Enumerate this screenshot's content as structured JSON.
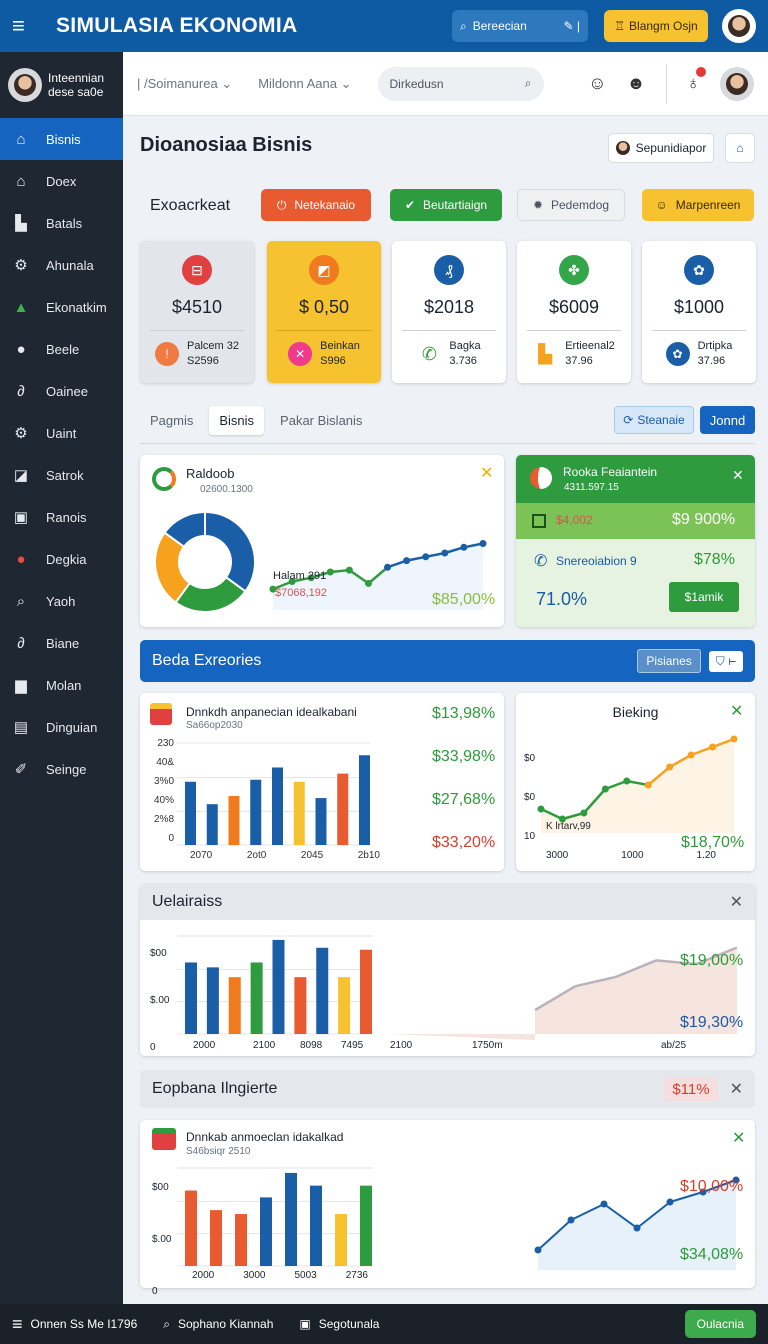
{
  "header": {
    "title": "SIMULASIA EKONOMIA",
    "search_label": "Bereecian",
    "button_label": "Blangm Osjn"
  },
  "sidebar": {
    "user": {
      "name": "Inteennian",
      "sub": "dese sa0e"
    },
    "items": [
      {
        "label": "Bisnis",
        "icon": "home-icon"
      },
      {
        "label": "Doex",
        "icon": "house-icon"
      },
      {
        "label": "Batals",
        "icon": "factory-icon"
      },
      {
        "label": "Ahunala",
        "icon": "gear-icon"
      },
      {
        "label": "Ekonatkim",
        "icon": "tree-icon"
      },
      {
        "label": "Beele",
        "icon": "coin-icon"
      },
      {
        "label": "Oainee",
        "icon": "link-icon"
      },
      {
        "label": "Uaint",
        "icon": "settings-icon"
      },
      {
        "label": "Satrok",
        "icon": "chart-icon"
      },
      {
        "label": "Ranois",
        "icon": "list-icon"
      },
      {
        "label": "Degkia",
        "icon": "palette-icon"
      },
      {
        "label": "Yaoh",
        "icon": "search-icon"
      },
      {
        "label": "Biane",
        "icon": "pen-icon"
      },
      {
        "label": "Molan",
        "icon": "camera-icon"
      },
      {
        "label": "Dinguian",
        "icon": "doc-icon"
      },
      {
        "label": "Seinge",
        "icon": "wrench-icon"
      }
    ]
  },
  "subheader": {
    "crumb1": "| /Soimanurea",
    "crumb2": "Mildonn Aana",
    "search": "Dirkedusn"
  },
  "page": {
    "title": "Dioanosiaa Bisnis",
    "user_button": "Sepunidiapor",
    "actions_label": "Exoacrkeat"
  },
  "actions": [
    {
      "label": "Netekanaio",
      "color": "#e85a30"
    },
    {
      "label": "Beutartiaign",
      "color": "#2e9b3f"
    },
    {
      "label": "Pedemdog",
      "color": "#f0f1f3"
    },
    {
      "label": "Marpenreen",
      "color": "#f6c22f"
    }
  ],
  "stats": [
    {
      "value": "$4510",
      "foot1": "Palcem 32",
      "foot2": "S2596",
      "bg": "#e2e5ea",
      "icon_bg": "#e04040",
      "foot_bg": "#ef7b42"
    },
    {
      "value": "$ 0,50",
      "foot1": "Beinkan",
      "foot2": "S996",
      "bg": "#f6c22f",
      "icon_bg": "#f07a1e",
      "foot_bg": "#f03a8b"
    },
    {
      "value": "$2018",
      "foot1": "Bagka",
      "foot2": "3.736",
      "bg": "#ffffff",
      "icon_bg": "#1a5ea8",
      "foot_bg": "#2e9b3f"
    },
    {
      "value": "$6009",
      "foot1": "Ertieenal2",
      "foot2": "37.96",
      "bg": "#ffffff",
      "icon_bg": "#34a64a",
      "foot_bg": "#f6a21e"
    },
    {
      "value": "$1000",
      "foot1": "Drtipka",
      "foot2": "37.96",
      "bg": "#ffffff",
      "icon_bg": "#1a5ea8",
      "foot_bg": "#1a5ea8"
    }
  ],
  "tabs": [
    "Pagmis",
    "Bisnis",
    "Pakar Bislanis"
  ],
  "tab_buttons": {
    "primary": "Steanaie",
    "secondary": "Jonnd"
  },
  "panel_donut": {
    "title": "Raldoob",
    "subtitle": "02600.1300",
    "label": "Halam 291",
    "sub_label": "$7068,192",
    "value": "$85,00%"
  },
  "panel_green": {
    "title": "Rooka Feaiantein",
    "subtitle": "4311.597.15",
    "left_value": "$4,002",
    "right_value": "$9 900%",
    "row_label": "Snereoiabion 9",
    "row_value": "$78%",
    "big_value": "71.0%",
    "button": "$1amik"
  },
  "section1": {
    "title": "Beda Exreories",
    "button": "Pisianes"
  },
  "panel_bars": {
    "title": "Dnnkdh anpanecian idealkabani",
    "subtitle": "Sa66op2030",
    "y_ticks": [
      "230",
      "40&",
      "3%0",
      "40%",
      "2%8",
      "0"
    ],
    "x_ticks": [
      "2070",
      "2ot0",
      "2045",
      "2b10"
    ],
    "values": [
      "$13,98%",
      "$33,98%",
      "$27,68%",
      "$33,20%"
    ]
  },
  "panel_line": {
    "title": "Bieking",
    "y_ticks": [
      "$0",
      "$0",
      "10"
    ],
    "x_ticks": [
      "3000",
      "1000",
      "1.20"
    ],
    "label": "K lrtarv,99",
    "value": "$18,70%"
  },
  "section2": {
    "title": "Uelairaiss"
  },
  "panel_wide": {
    "y_ticks": [
      "$00",
      "$.00",
      "0"
    ],
    "x_ticks": [
      "2000",
      "2100",
      "8098",
      "7495",
      "2100",
      "1750m",
      "ab/25"
    ],
    "value1": "$19,00%",
    "value2": "$19,30%"
  },
  "section3": {
    "title": "Eopbana Ilngierte",
    "badge": "$11%"
  },
  "panel_bottom": {
    "title": "Dnnkab anmoeclan idakalkad",
    "subtitle": "S46bsiqr 2510",
    "y_ticks": [
      "$00",
      "$.00",
      "0"
    ],
    "x_ticks": [
      "2000",
      "3000",
      "5003",
      "2736"
    ],
    "value1": "$10,00%",
    "value2": "$34,08%"
  },
  "bottombar": {
    "item1": "Onnen Ss Me I1796",
    "item2": "Sophano Kiannah",
    "item3": "Segotunala",
    "button": "Oulacnia"
  },
  "chart_data": [
    {
      "type": "pie",
      "values": [
        35,
        25,
        25,
        15
      ],
      "colors": [
        "#1a5ea8",
        "#2e9b3f",
        "#f6a21e",
        "#1a5ea8"
      ]
    },
    {
      "type": "line",
      "series": [
        {
          "values": [
            0.22,
            0.3,
            0.34,
            0.4,
            0.42,
            0.28,
            0.45,
            0.52,
            0.56,
            0.6,
            0.66,
            0.7
          ]
        }
      ],
      "colors": [
        "#2e9b3f",
        "#1a5ea8"
      ]
    },
    {
      "type": "bar",
      "values": [
        0.62,
        0.4,
        0.48,
        0.64,
        0.76,
        0.62,
        0.46,
        0.7,
        0.88
      ],
      "colors": [
        "#1a5ea8",
        "#1a5ea8",
        "#f07a1e",
        "#1a5ea8",
        "#1a5ea8",
        "#f6c22f",
        "#1a5ea8",
        "#e85a30",
        "#1a5ea8"
      ]
    },
    {
      "type": "line",
      "series": [
        {
          "values": [
            0.24,
            0.14,
            0.2,
            0.44,
            0.52,
            0.48,
            0.66,
            0.78,
            0.86,
            0.94
          ]
        }
      ],
      "colors": [
        "#2e9b3f",
        "#f6a21e"
      ]
    },
    {
      "type": "bar",
      "values": [
        0.73,
        0.68,
        0.58,
        0.73,
        0.96,
        0.58,
        0.88,
        0.58,
        0.86
      ],
      "colors": [
        "#1a5ea8",
        "#1a5ea8",
        "#f07a1e",
        "#2e9b3f",
        "#1a5ea8",
        "#e85a30",
        "#1a5ea8",
        "#f6c22f",
        "#e85a30"
      ]
    },
    {
      "type": "area",
      "values": [
        0.26,
        0.52,
        0.62,
        0.8,
        0.76,
        0.94
      ],
      "colors": [
        "#b9b2bb"
      ]
    },
    {
      "type": "bar",
      "values": [
        0.77,
        0.57,
        0.53,
        0.7,
        0.95,
        0.82,
        0.53,
        0.82
      ],
      "colors": [
        "#e85a30",
        "#e85a30",
        "#e85a30",
        "#1a5ea8",
        "#1a5ea8",
        "#1a5ea8",
        "#f6c22f",
        "#2e9b3f"
      ]
    },
    {
      "type": "line",
      "series": [
        {
          "values": [
            0.2,
            0.5,
            0.66,
            0.42,
            0.68,
            0.78,
            0.9
          ]
        }
      ],
      "colors": [
        "#1a5ea8"
      ]
    }
  ]
}
